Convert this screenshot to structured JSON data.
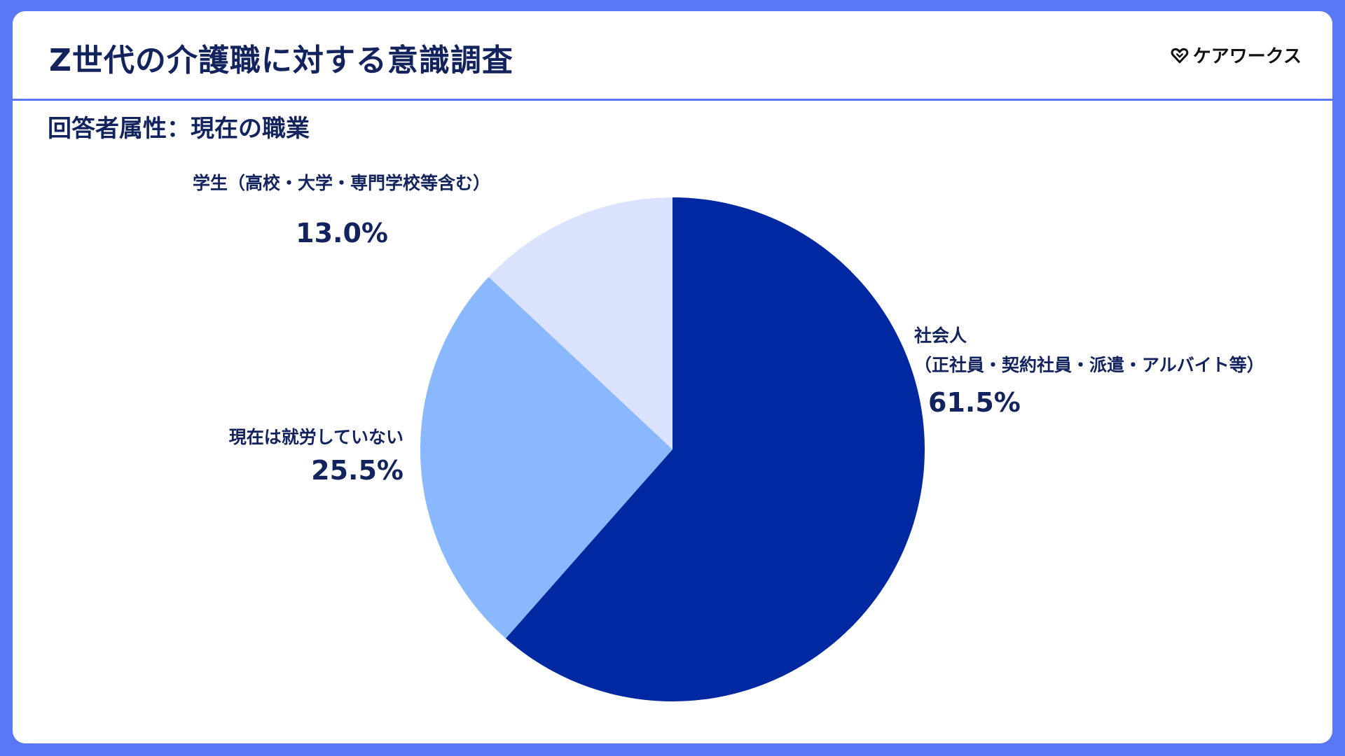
{
  "header": {
    "title": "Z世代の介護職に対する意識調査",
    "brand": "ケアワークス",
    "brand_icon": "heart-icon"
  },
  "subtitle": "回答者属性：現在の職業",
  "colors": {
    "background": "#5a78f5",
    "text": "#13235e"
  },
  "chart_data": {
    "type": "pie",
    "start_angle_deg": 0,
    "direction": "clockwise",
    "slices": [
      {
        "label_lines": [
          "社会人",
          "（正社員・契約社員・派遣・アルバイト等）"
        ],
        "value": 61.5,
        "value_label": "61.5%",
        "color": "#0028a0"
      },
      {
        "label_lines": [
          "現在は就労していない"
        ],
        "value": 25.5,
        "value_label": "25.5%",
        "color": "#8ab8fe"
      },
      {
        "label_lines": [
          "学生（高校・大学・専門学校等含む）"
        ],
        "value": 13.0,
        "value_label": "13.0%",
        "color": "#dbe2fd"
      }
    ]
  }
}
